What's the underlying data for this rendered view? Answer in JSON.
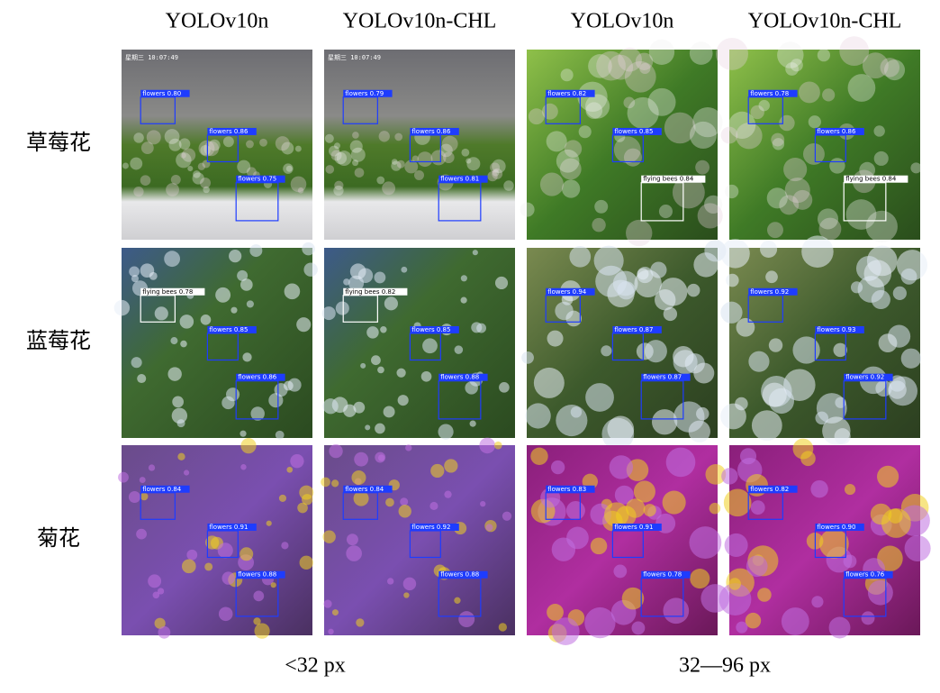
{
  "columns": [
    "YOLOv10n",
    "YOLOv10n-CHL",
    "YOLOv10n",
    "YOLOv10n-CHL"
  ],
  "rows": [
    {
      "label": "草莓花",
      "panels": [
        {
          "stamp": "星期三 10:07:49",
          "detections": [
            {
              "text": "flowers 0.80",
              "color": "#1e3cff"
            },
            {
              "text": "flowers 0.86",
              "color": "#1e3cff"
            },
            {
              "text": "flowers 0.75",
              "color": "#1e3cff"
            }
          ]
        },
        {
          "stamp": "星期三 10:07:49",
          "detections": [
            {
              "text": "flowers 0.79",
              "color": "#1e3cff"
            },
            {
              "text": "flowers 0.86",
              "color": "#1e3cff"
            },
            {
              "text": "flowers 0.81",
              "color": "#1e3cff"
            }
          ]
        },
        {
          "detections": [
            {
              "text": "flowers 0.82",
              "color": "#1e3cff"
            },
            {
              "text": "flowers 0.85",
              "color": "#1e3cff"
            },
            {
              "text": "flying bees 0.84",
              "color": "#ffffff"
            }
          ]
        },
        {
          "detections": [
            {
              "text": "flowers 0.78",
              "color": "#1e3cff"
            },
            {
              "text": "flowers 0.86",
              "color": "#1e3cff"
            },
            {
              "text": "flying bees 0.84",
              "color": "#ffffff"
            }
          ]
        }
      ]
    },
    {
      "label": "蓝莓花",
      "panels": [
        {
          "detections": [
            {
              "text": "flying bees 0.78",
              "color": "#ffffff"
            },
            {
              "text": "flowers 0.85",
              "color": "#1e3cff"
            },
            {
              "text": "flowers 0.86",
              "color": "#1e3cff"
            }
          ]
        },
        {
          "detections": [
            {
              "text": "flying bees 0.82",
              "color": "#ffffff"
            },
            {
              "text": "flowers 0.85",
              "color": "#1e3cff"
            },
            {
              "text": "flowers 0.88",
              "color": "#1e3cff"
            }
          ]
        },
        {
          "detections": [
            {
              "text": "flowers 0.94",
              "color": "#1e3cff"
            },
            {
              "text": "flowers 0.87",
              "color": "#1e3cff"
            },
            {
              "text": "flowers 0.87",
              "color": "#1e3cff"
            }
          ]
        },
        {
          "detections": [
            {
              "text": "flowers 0.92",
              "color": "#1e3cff"
            },
            {
              "text": "flowers 0.93",
              "color": "#1e3cff"
            },
            {
              "text": "flowers 0.92",
              "color": "#1e3cff"
            }
          ]
        }
      ]
    },
    {
      "label": "菊花",
      "panels": [
        {
          "detections": [
            {
              "text": "flowers 0.84",
              "color": "#1e3cff"
            },
            {
              "text": "flowers 0.91",
              "color": "#1e3cff"
            },
            {
              "text": "flowers 0.88",
              "color": "#1e3cff"
            }
          ]
        },
        {
          "detections": [
            {
              "text": "flowers 0.84",
              "color": "#1e3cff"
            },
            {
              "text": "flowers 0.92",
              "color": "#1e3cff"
            },
            {
              "text": "flowers 0.88",
              "color": "#1e3cff"
            }
          ]
        },
        {
          "detections": [
            {
              "text": "flowers 0.83",
              "color": "#1e3cff"
            },
            {
              "text": "flowers 0.91",
              "color": "#1e3cff"
            },
            {
              "text": "flowers 0.78",
              "color": "#1e3cff"
            }
          ]
        },
        {
          "detections": [
            {
              "text": "flowers 0.82",
              "color": "#1e3cff"
            },
            {
              "text": "flowers 0.90",
              "color": "#1e3cff"
            },
            {
              "text": "flowers 0.76",
              "color": "#1e3cff"
            }
          ]
        }
      ]
    }
  ],
  "size_groups": [
    "<32 px",
    "32—96 px"
  ]
}
